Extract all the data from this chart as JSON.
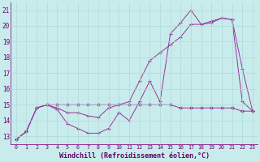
{
  "xlabel": "Windchill (Refroidissement éolien,°C)",
  "background_color": "#c8ecec",
  "grid_color": "#b0d8d8",
  "line_color": "#993399",
  "x_ticks": [
    0,
    1,
    2,
    3,
    4,
    5,
    6,
    7,
    8,
    9,
    10,
    11,
    12,
    13,
    14,
    15,
    16,
    17,
    18,
    19,
    20,
    21,
    22,
    23
  ],
  "y_ticks": [
    13,
    14,
    15,
    16,
    17,
    18,
    19,
    20,
    21
  ],
  "ylim": [
    12.5,
    21.5
  ],
  "xlim": [
    -0.5,
    23.5
  ],
  "series1_x": [
    0,
    1,
    2,
    3,
    4,
    5,
    6,
    7,
    8,
    9,
    10,
    11,
    12,
    13,
    14,
    15,
    16,
    17,
    18,
    19,
    20,
    21,
    22,
    23
  ],
  "series1_y": [
    12.8,
    13.3,
    14.8,
    15.0,
    14.7,
    13.8,
    13.5,
    13.2,
    13.2,
    13.5,
    14.5,
    14.0,
    15.2,
    16.5,
    15.2,
    19.5,
    20.2,
    21.0,
    20.1,
    20.2,
    20.5,
    20.4,
    15.2,
    14.6
  ],
  "series2_x": [
    0,
    1,
    2,
    3,
    4,
    5,
    6,
    7,
    8,
    9,
    10,
    11,
    12,
    13,
    14,
    15,
    16,
    17,
    18,
    19,
    20,
    21,
    22,
    23
  ],
  "series2_y": [
    12.8,
    13.3,
    14.8,
    15.0,
    14.8,
    14.5,
    14.5,
    14.3,
    14.2,
    14.8,
    15.0,
    15.2,
    16.5,
    17.8,
    18.3,
    18.8,
    19.3,
    20.1,
    20.1,
    20.3,
    20.5,
    20.4,
    17.3,
    14.6
  ],
  "series3_x": [
    0,
    1,
    2,
    3,
    4,
    5,
    6,
    7,
    8,
    9,
    10,
    11,
    12,
    13,
    14,
    15,
    16,
    17,
    18,
    19,
    20,
    21,
    22,
    23
  ],
  "series3_y": [
    12.8,
    13.3,
    14.8,
    15.0,
    15.0,
    15.0,
    15.0,
    15.0,
    15.0,
    15.0,
    15.0,
    15.0,
    15.0,
    15.0,
    15.0,
    15.0,
    14.8,
    14.8,
    14.8,
    14.8,
    14.8,
    14.8,
    14.6,
    14.6
  ]
}
